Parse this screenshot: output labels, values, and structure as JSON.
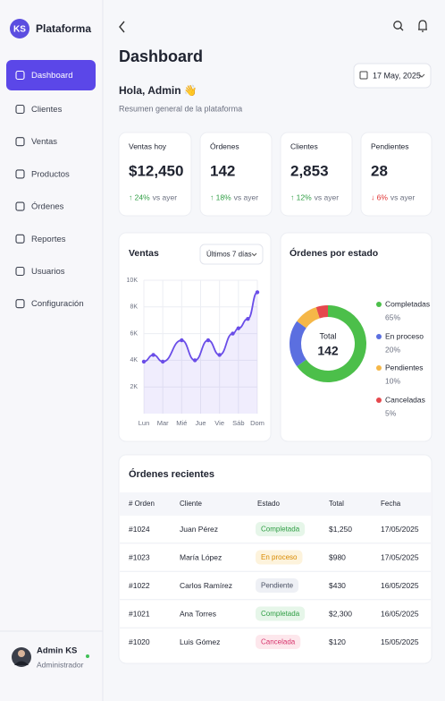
{
  "sidebar": {
    "logo": "KS",
    "brand": "Plataforma",
    "nav": [
      {
        "label": "Dashboard",
        "active": true
      },
      {
        "label": "Clientes",
        "active": false
      },
      {
        "label": "Ventas",
        "active": false
      },
      {
        "label": "Productos",
        "active": false
      },
      {
        "label": "Órdenes",
        "active": false
      },
      {
        "label": "Reportes",
        "active": false
      },
      {
        "label": "Usuarios",
        "active": false
      },
      {
        "label": "Configuración",
        "active": false
      }
    ],
    "user": {
      "name": "Admin KS",
      "role": "Administrador"
    }
  },
  "header": {
    "title": "Dashboard",
    "date": "17 May, 2025",
    "greeting": "Hola, Admin 👋",
    "subtitle": "Resumen general de la plataforma"
  },
  "stats": [
    {
      "label": "Ventas hoy",
      "value": "$12,450",
      "change": "↑ 24%",
      "note": "vs ayer",
      "color": "#2f9e44"
    },
    {
      "label": "Órdenes",
      "value": "142",
      "change": "↑ 18%",
      "note": "vs ayer",
      "color": "#2f9e44"
    },
    {
      "label": "Clientes",
      "value": "2,853",
      "change": "↑ 12%",
      "note": "vs ayer",
      "color": "#2f9e44"
    },
    {
      "label": "Pendientes",
      "value": "28",
      "change": "↓ 6%",
      "note": "vs ayer",
      "color": "#e03131"
    }
  ],
  "chart_data": [
    {
      "type": "line",
      "title": "Ventas",
      "period": "Últimos 7 días",
      "x": [
        0,
        0.5,
        1,
        2,
        2.7,
        3.4,
        4,
        4.7,
        5,
        5.5,
        6
      ],
      "values": [
        3900,
        4400,
        3900,
        5500,
        4000,
        5500,
        4400,
        6000,
        6400,
        7100,
        9100
      ],
      "color": "#6a4de8",
      "xlim": [
        0,
        6
      ],
      "ylim": [
        0,
        10000
      ],
      "xticks": [
        {
          "value": 0,
          "label": "Lun"
        },
        {
          "value": 1,
          "label": "Mar"
        },
        {
          "value": 2,
          "label": "Mié"
        },
        {
          "value": 3,
          "label": "Jue"
        },
        {
          "value": 4,
          "label": "Vie"
        },
        {
          "value": 5,
          "label": "Sáb"
        },
        {
          "value": 6,
          "label": "Dom"
        }
      ],
      "yticks": [
        {
          "value": 2000,
          "label": "2K"
        },
        {
          "value": 4000,
          "label": "4K"
        },
        {
          "value": 6000,
          "label": "6K"
        },
        {
          "value": 8000,
          "label": "8K"
        },
        {
          "value": 10000,
          "label": "10K"
        }
      ],
      "grid": true
    },
    {
      "type": "pie",
      "title": "Órdenes por estado",
      "center_label": "Total",
      "center_value": 142,
      "categories": [
        "Completadas",
        "En proceso",
        "Pendientes",
        "Canceladas"
      ],
      "values": [
        65,
        20,
        10,
        5
      ],
      "value_labels": [
        "65%",
        "20%",
        "10%",
        "5%"
      ],
      "colors": [
        "#4cbf4a",
        "#5b6fe0",
        "#f5b748",
        "#e5484d"
      ]
    }
  ],
  "recent_orders": {
    "title": "Órdenes recientes",
    "columns": [
      "# Orden",
      "Cliente",
      "Estado",
      "Total",
      "Fecha"
    ],
    "rows": [
      {
        "cells": [
          "#1024",
          "Juan Pérez",
          "Completada",
          "$1,250",
          "17/05/2025"
        ],
        "badge_color": "#2f9e44",
        "badge_bg": "#e6f6e9"
      },
      {
        "cells": [
          "#1023",
          "María López",
          "En proceso",
          "$980",
          "17/05/2025"
        ],
        "badge_color": "#d98a00",
        "badge_bg": "#fdf3dc"
      },
      {
        "cells": [
          "#1022",
          "Carlos Ramírez",
          "Pendiente",
          "$430",
          "16/05/2025"
        ],
        "badge_color": "#4a5063",
        "badge_bg": "#eef0f5"
      },
      {
        "cells": [
          "#1021",
          "Ana Torres",
          "Completada",
          "$2,300",
          "16/05/2025"
        ],
        "badge_color": "#2f9e44",
        "badge_bg": "#e6f6e9"
      },
      {
        "cells": [
          "#1020",
          "Luis Gómez",
          "Cancelada",
          "$120",
          "15/05/2025"
        ],
        "badge_color": "#d6336c",
        "badge_bg": "#fde7ec"
      }
    ]
  }
}
